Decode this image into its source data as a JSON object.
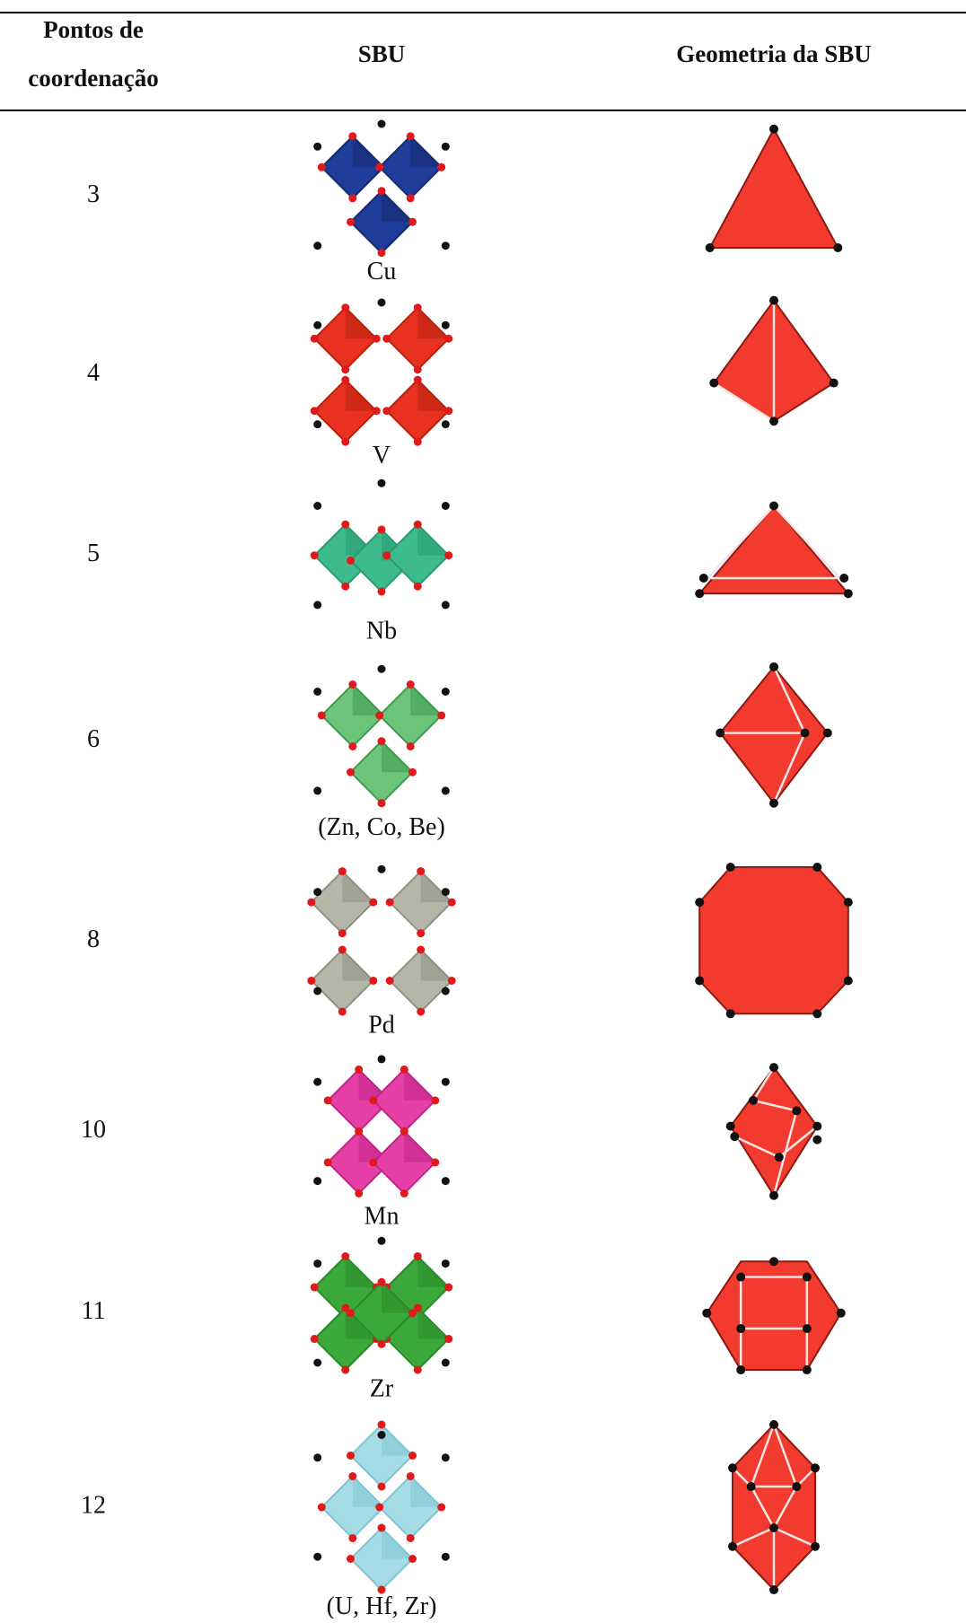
{
  "header": {
    "coordination_lines": [
      "Pontos de",
      "coordenação"
    ],
    "sbu": "SBU",
    "geometry": "Geometria da SBU"
  },
  "rows": [
    {
      "points": "3",
      "sbu": "Cu"
    },
    {
      "points": "4",
      "sbu": "V"
    },
    {
      "points": "5",
      "sbu": "Nb"
    },
    {
      "points": "6",
      "sbu": "(Zn, Co, Be)"
    },
    {
      "points": "8",
      "sbu": "Pd"
    },
    {
      "points": "10",
      "sbu": "Mn"
    },
    {
      "points": "11",
      "sbu": "Zr"
    },
    {
      "points": "12",
      "sbu": "(U, Hf, Zr)"
    }
  ]
}
